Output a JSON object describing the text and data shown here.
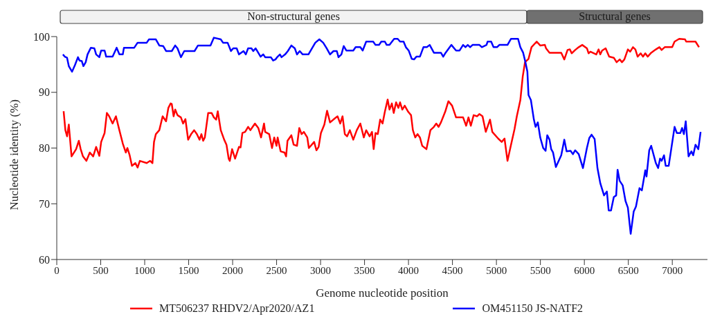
{
  "chart_data": {
    "type": "line",
    "xlabel": "Genome nucleotide position",
    "ylabel": "Nucleotide identity (%)",
    "xlim": [
      0,
      7400
    ],
    "xticks": [
      0,
      500,
      1000,
      1500,
      2000,
      2500,
      3000,
      3500,
      4000,
      4500,
      5000,
      5500,
      6000,
      6500,
      7000
    ],
    "ylim": [
      60,
      100
    ],
    "yticks": [
      60,
      70,
      80,
      90,
      100
    ],
    "grid": false,
    "legend": "bottom",
    "marker": "none",
    "line_style": "solid",
    "annotations": [
      "Non-structural genes",
      "Structural genes"
    ],
    "series": [
      {
        "name": "MT506237 RHDV2/Apr2020/AZ1",
        "color": "#ff0000",
        "x": [
          78,
          98,
          117,
          137,
          168,
          220,
          251,
          272,
          298,
          337,
          376,
          414,
          448,
          484,
          505,
          544,
          570,
          596,
          635,
          673,
          712,
          751,
          785,
          803,
          829,
          855,
          894,
          919,
          945,
          1023,
          1062,
          1088,
          1106,
          1127,
          1166,
          1204,
          1243,
          1269,
          1295,
          1308,
          1329,
          1347,
          1373,
          1412,
          1437,
          1463,
          1494,
          1528,
          1562,
          1593,
          1624,
          1645,
          1665,
          1684,
          1722,
          1761,
          1787,
          1813,
          1831,
          1865,
          1904,
          1930,
          1955,
          1968,
          1994,
          2028,
          2072,
          2090,
          2111,
          2142,
          2176,
          2202,
          2228,
          2254,
          2292,
          2323,
          2357,
          2370,
          2416,
          2448,
          2473,
          2499,
          2512,
          2546,
          2590,
          2608,
          2624,
          2668,
          2694,
          2732,
          2758,
          2784,
          2810,
          2849,
          2867,
          2927,
          2953,
          2978,
          3004,
          3043,
          3074,
          3108,
          3160,
          3193,
          3224,
          3250,
          3276,
          3302,
          3333,
          3372,
          3412,
          3452,
          3492,
          3519,
          3558,
          3585,
          3604,
          3625,
          3651,
          3678,
          3705,
          3731,
          3763,
          3784,
          3811,
          3832,
          3859,
          3885,
          3904,
          3930,
          3957,
          3997,
          4029,
          4050,
          4077,
          4103,
          4130,
          4156,
          4204,
          4249,
          4289,
          4316,
          4342,
          4369,
          4417,
          4454,
          4496,
          4541,
          4621,
          4656,
          4682,
          4709,
          4741,
          4781,
          4807,
          4842,
          4879,
          4927,
          4953,
          5020,
          5060,
          5092,
          5126,
          5166,
          5206,
          5232,
          5272,
          5299,
          5325,
          5365,
          5399,
          5458,
          5498,
          5551,
          5564,
          5604,
          5737,
          5772,
          5809,
          5835,
          5856,
          5896,
          5936,
          5976,
          6029,
          6048,
          6069,
          6136,
          6162,
          6181,
          6202,
          6242,
          6282,
          6335,
          6367,
          6402,
          6428,
          6455,
          6495,
          6521,
          6553,
          6580,
          6606,
          6640,
          6667,
          6693,
          6720,
          6760,
          6813,
          6853,
          6879,
          6914,
          6999,
          7026,
          7079,
          7145,
          7158,
          7264,
          7304
        ],
        "values": [
          86.6,
          83.2,
          82.1,
          84.2,
          78.5,
          79.8,
          81.3,
          79.8,
          78.5,
          77.7,
          79.2,
          78.5,
          80.2,
          78.6,
          81.1,
          82.7,
          86.3,
          85.7,
          84.4,
          85.7,
          83.2,
          80.8,
          79.2,
          80.0,
          78.7,
          76.8,
          77.3,
          76.5,
          77.7,
          77.3,
          77.7,
          77.3,
          81.1,
          82.5,
          83.2,
          85.7,
          84.8,
          87.2,
          88.0,
          87.9,
          85.7,
          86.9,
          85.9,
          85.5,
          84.4,
          85.2,
          81.5,
          82.5,
          83.2,
          82.5,
          81.5,
          82.5,
          81.3,
          81.9,
          86.3,
          86.3,
          85.5,
          85.1,
          86.6,
          83.2,
          81.5,
          80.6,
          78.1,
          77.7,
          79.8,
          78.1,
          80.2,
          80.1,
          82.7,
          82.9,
          83.8,
          83.2,
          83.8,
          84.4,
          83.6,
          81.9,
          84.4,
          82.9,
          82.5,
          80.0,
          81.9,
          80.4,
          81.9,
          79.4,
          79.2,
          78.5,
          81.3,
          82.3,
          80.6,
          80.4,
          83.6,
          82.5,
          82.9,
          81.9,
          80.0,
          81.1,
          79.6,
          80.2,
          82.7,
          84.2,
          86.7,
          84.6,
          85.3,
          85.7,
          84.4,
          85.7,
          82.5,
          82.1,
          83.2,
          81.5,
          83.2,
          84.4,
          81.9,
          83.2,
          82.1,
          82.9,
          79.8,
          82.7,
          82.5,
          85.1,
          84.4,
          86.5,
          88.7,
          86.9,
          88.0,
          86.3,
          88.2,
          87.2,
          88.2,
          86.9,
          87.6,
          86.5,
          85.9,
          83.2,
          81.9,
          82.5,
          81.9,
          80.4,
          79.8,
          83.2,
          83.8,
          84.4,
          83.8,
          84.6,
          86.5,
          88.4,
          87.6,
          85.5,
          85.5,
          84.0,
          85.5,
          84.0,
          85.9,
          85.7,
          86.1,
          85.7,
          82.9,
          85.1,
          82.9,
          81.7,
          81.1,
          81.7,
          77.7,
          80.6,
          83.4,
          85.7,
          88.6,
          92.8,
          95.4,
          96.0,
          98.1,
          99.1,
          98.4,
          98.5,
          97.9,
          97.1,
          97.1,
          95.9,
          97.6,
          97.7,
          97.0,
          97.6,
          98.1,
          98.5,
          97.9,
          97.0,
          97.3,
          96.8,
          97.7,
          96.8,
          97.5,
          97.9,
          96.4,
          96.2,
          95.4,
          95.9,
          95.4,
          95.9,
          97.7,
          97.3,
          98.1,
          97.7,
          96.4,
          97.0,
          96.4,
          97.0,
          96.4,
          97.1,
          97.7,
          98.1,
          97.6,
          98.1,
          98.1,
          99.1,
          99.6,
          99.5,
          99.1,
          99.1,
          98.1
        ]
      },
      {
        "name": "OM451150 JS-NATF2",
        "color": "#0000ff",
        "x": [
          70,
          91,
          117,
          137,
          174,
          207,
          241,
          259,
          285,
          303,
          329,
          350,
          388,
          427,
          448,
          484,
          505,
          544,
          562,
          635,
          681,
          712,
          751,
          764,
          881,
          919,
          1023,
          1049,
          1127,
          1166,
          1210,
          1243,
          1308,
          1347,
          1373,
          1412,
          1450,
          1567,
          1606,
          1748,
          1787,
          1865,
          1891,
          1943,
          1981,
          2007,
          2046,
          2072,
          2124,
          2150,
          2176,
          2214,
          2235,
          2261,
          2318,
          2349,
          2370,
          2435,
          2461,
          2487,
          2512,
          2538,
          2556,
          2597,
          2628,
          2668,
          2707,
          2732,
          2763,
          2797,
          2862,
          2940,
          2986,
          3030,
          3069,
          3108,
          3147,
          3185,
          3204,
          3237,
          3263,
          3293,
          3372,
          3399,
          3452,
          3479,
          3519,
          3598,
          3625,
          3665,
          3691,
          3731,
          3752,
          3784,
          3837,
          3877,
          3904,
          3944,
          3970,
          4002,
          4037,
          4063,
          4090,
          4130,
          4170,
          4209,
          4241,
          4289,
          4369,
          4395,
          4422,
          4488,
          4541,
          4581,
          4621,
          4648,
          4674,
          4701,
          4728,
          4807,
          4834,
          4887,
          4900,
          4940,
          4967,
          5007,
          5033,
          5126,
          5166,
          5246,
          5272,
          5304,
          5330,
          5352,
          5365,
          5392,
          5426,
          5445,
          5471,
          5498,
          5532,
          5559,
          5578,
          5604,
          5623,
          5644,
          5676,
          5737,
          5772,
          5798,
          5843,
          5870,
          5896,
          5936,
          5984,
          6029,
          6056,
          6082,
          6117,
          6149,
          6181,
          6224,
          6256,
          6277,
          6303,
          6335,
          6362,
          6378,
          6402,
          6436,
          6468,
          6495,
          6527,
          6561,
          6587,
          6627,
          6654,
          6693,
          6707,
          6738,
          6760,
          6813,
          6839,
          6861,
          6879,
          6906,
          6925,
          6959,
          7026,
          7052,
          7092,
          7111,
          7132,
          7153,
          7185,
          7217,
          7238,
          7264,
          7296,
          7322
        ],
        "values": [
          96.8,
          96.4,
          96.2,
          94.7,
          93.7,
          94.9,
          96.3,
          95.7,
          95.6,
          94.7,
          95.4,
          96.8,
          98.0,
          97.9,
          96.8,
          96.3,
          97.5,
          97.5,
          96.4,
          96.4,
          98.0,
          96.8,
          96.8,
          98.0,
          98.0,
          98.9,
          98.9,
          99.5,
          99.5,
          98.4,
          98.3,
          97.4,
          97.4,
          98.4,
          97.9,
          96.3,
          97.4,
          97.4,
          98.4,
          98.4,
          99.8,
          99.5,
          98.9,
          98.9,
          97.4,
          97.9,
          97.9,
          96.8,
          97.4,
          96.8,
          97.9,
          97.9,
          97.4,
          97.9,
          96.4,
          96.8,
          96.3,
          96.3,
          95.7,
          95.9,
          96.4,
          96.8,
          96.3,
          96.8,
          97.4,
          98.4,
          97.9,
          96.8,
          97.4,
          96.8,
          96.8,
          98.9,
          99.5,
          98.9,
          97.9,
          96.8,
          97.4,
          97.4,
          96.3,
          96.8,
          98.3,
          97.5,
          97.5,
          98.1,
          98.1,
          97.5,
          99.1,
          99.1,
          98.5,
          98.5,
          99.1,
          99.1,
          98.5,
          98.5,
          99.6,
          99.6,
          99.1,
          99.1,
          98.1,
          97.5,
          96.0,
          95.9,
          96.4,
          96.4,
          98.1,
          98.1,
          98.5,
          97.1,
          97.1,
          96.4,
          97.1,
          98.5,
          97.5,
          97.5,
          98.5,
          98.1,
          98.5,
          98.1,
          98.5,
          98.5,
          98.1,
          98.5,
          99.1,
          99.1,
          98.1,
          98.1,
          98.5,
          98.5,
          99.6,
          99.6,
          98.1,
          97.1,
          95.4,
          93.7,
          89.5,
          88.6,
          85.1,
          83.8,
          84.6,
          81.9,
          80.0,
          79.5,
          82.3,
          81.5,
          79.8,
          79.2,
          76.6,
          78.7,
          81.5,
          79.4,
          79.5,
          78.9,
          79.6,
          78.9,
          76.4,
          80.0,
          81.8,
          82.4,
          81.6,
          76.4,
          73.7,
          71.5,
          72.2,
          68.8,
          68.8,
          71.2,
          71.5,
          76.1,
          74.1,
          73.3,
          70.5,
          69.3,
          64.6,
          68.6,
          69.5,
          72.8,
          72.4,
          76.0,
          74.9,
          79.6,
          80.4,
          77.3,
          76.4,
          78.1,
          77.7,
          78.7,
          76.8,
          76.8,
          83.8,
          82.7,
          82.7,
          83.6,
          82.5,
          84.8,
          78.5,
          79.4,
          78.7,
          80.6,
          79.8,
          82.9
        ]
      }
    ]
  }
}
